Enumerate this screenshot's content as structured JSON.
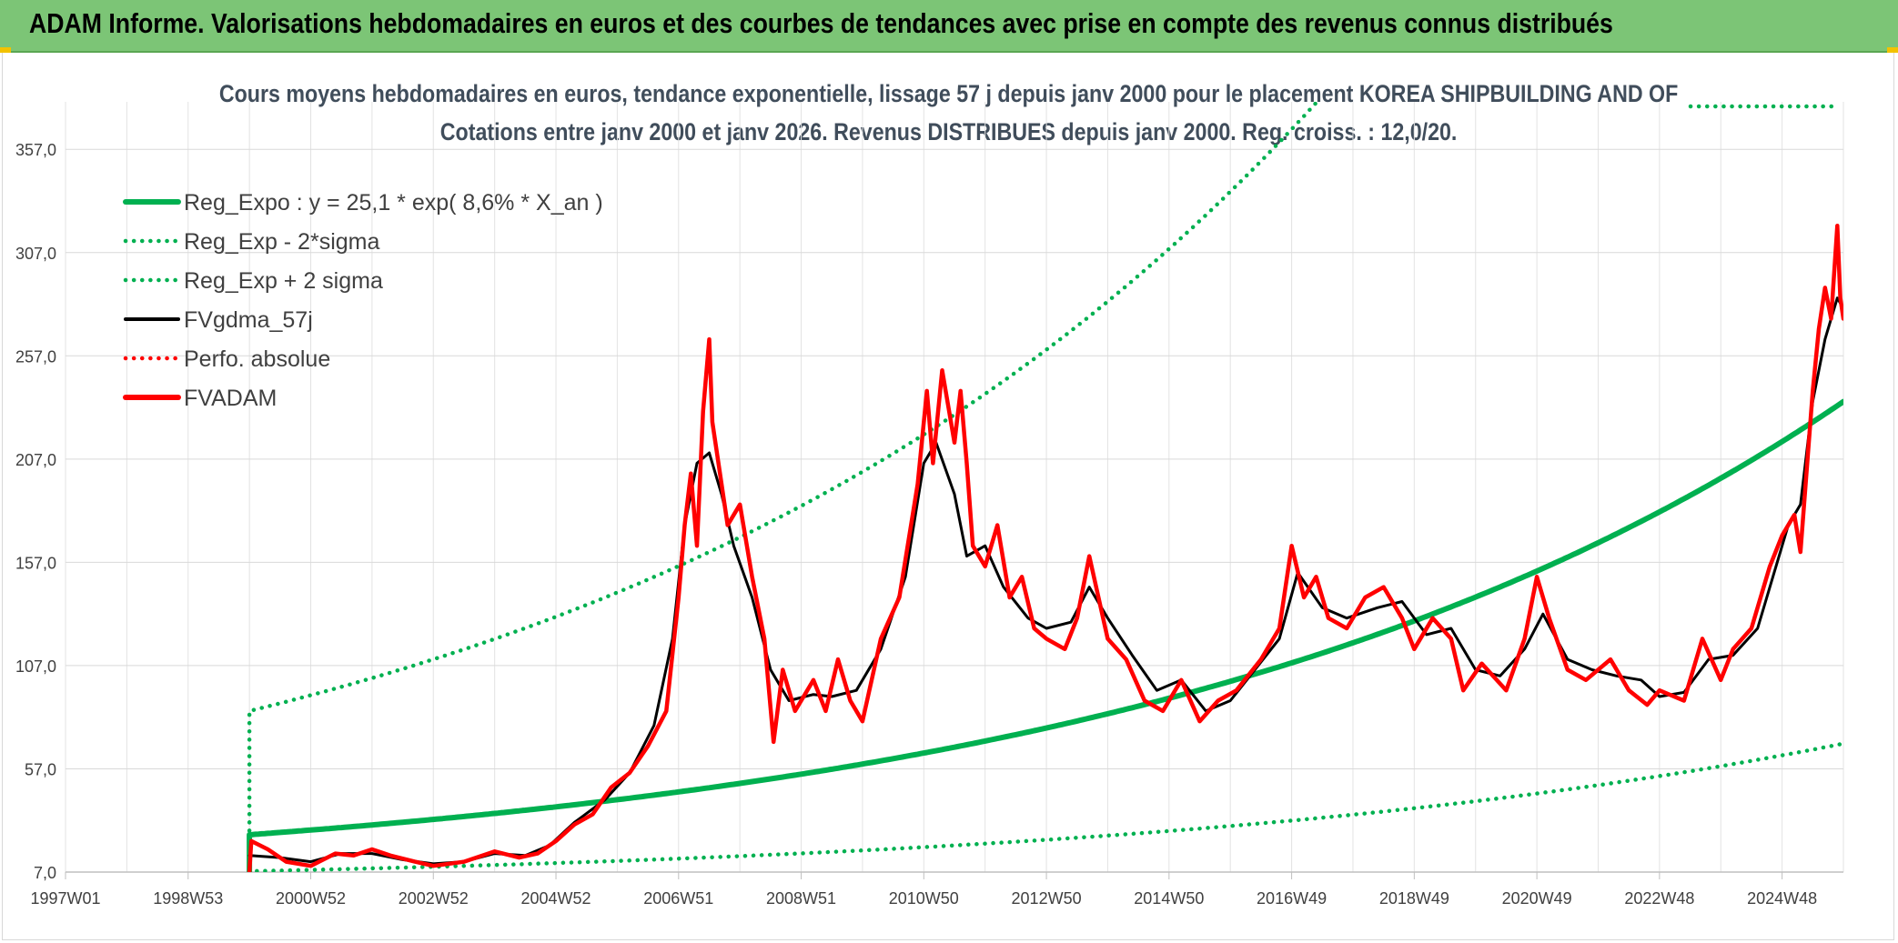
{
  "banner": {
    "title": "ADAM Informe. Valorisations hebdomadaires en euros et des courbes de tendances avec prise en compte des revenus connus distribués"
  },
  "chart_data": {
    "type": "line",
    "title": "Cours moyens hebdomadaires en euros, tendance exponentielle, lissage 57 j depuis janv 2000 pour le placement KOREA SHIPBUILDING AND OF",
    "subtitle": "Cotations entre janv 2000 et janv 2026. Revenus DISTRIBUES depuis janv 2000. Reg. croiss. : 12,0/20.",
    "xlabel": "",
    "ylabel": "",
    "y_ticks": [
      "7,0",
      "57,0",
      "107,0",
      "157,0",
      "207,0",
      "257,0",
      "307,0",
      "357,0"
    ],
    "ylim": [
      7,
      380
    ],
    "x_ticks": [
      {
        "label": "1997W01",
        "year": 1997.0
      },
      {
        "label": "1998W53",
        "year": 1999.0
      },
      {
        "label": "2000W52",
        "year": 2001.0
      },
      {
        "label": "2002W52",
        "year": 2003.0
      },
      {
        "label": "2004W52",
        "year": 2005.0
      },
      {
        "label": "2006W51",
        "year": 2007.0
      },
      {
        "label": "2008W51",
        "year": 2009.0
      },
      {
        "label": "2010W50",
        "year": 2011.0
      },
      {
        "label": "2012W50",
        "year": 2013.0
      },
      {
        "label": "2014W50",
        "year": 2015.0
      },
      {
        "label": "2016W49",
        "year": 2017.0
      },
      {
        "label": "2018W49",
        "year": 2019.0
      },
      {
        "label": "2020W49",
        "year": 2021.0
      },
      {
        "label": "2022W48",
        "year": 2023.0
      },
      {
        "label": "2024W48",
        "year": 2025.0
      }
    ],
    "xlim": [
      1997.0,
      2026.0
    ],
    "grid": true,
    "legend_position": "top-left",
    "series": [
      {
        "name": "Reg_Expo : y = 25,1 * exp( 8,6% *  X_an )",
        "color": "#00b050",
        "style": "solid",
        "x": [
          2000.0,
          2026.0
        ],
        "kind": "exp",
        "a": 25.1,
        "rate": 0.086
      },
      {
        "name": "Reg_Exp - 2*sigma",
        "color": "#00b050",
        "style": "dotted",
        "x": [
          2000.0,
          2026.0
        ],
        "kind": "exp",
        "a": 7.4,
        "rate": 0.086
      },
      {
        "name": "Reg_Exp + 2 sigma",
        "color": "#00b050",
        "style": "dotted",
        "x": [
          2000.0,
          2026.0
        ],
        "kind": "exp",
        "a": 85.0,
        "rate": 0.086
      },
      {
        "name": "FVgdma_57j",
        "color": "#000000",
        "style": "solid",
        "points": [
          [
            2000.0,
            15
          ],
          [
            2000.5,
            14
          ],
          [
            2001.0,
            12
          ],
          [
            2001.5,
            16
          ],
          [
            2002.0,
            16
          ],
          [
            2002.5,
            13
          ],
          [
            2003.0,
            11
          ],
          [
            2003.5,
            12
          ],
          [
            2004.0,
            16
          ],
          [
            2004.5,
            15
          ],
          [
            2004.9,
            20
          ],
          [
            2005.3,
            31
          ],
          [
            2005.8,
            42
          ],
          [
            2006.2,
            55
          ],
          [
            2006.6,
            78
          ],
          [
            2006.9,
            120
          ],
          [
            2007.1,
            175
          ],
          [
            2007.3,
            205
          ],
          [
            2007.5,
            210
          ],
          [
            2007.7,
            190
          ],
          [
            2007.9,
            165
          ],
          [
            2008.2,
            140
          ],
          [
            2008.5,
            105
          ],
          [
            2008.8,
            90
          ],
          [
            2009.2,
            93
          ],
          [
            2009.5,
            92
          ],
          [
            2009.9,
            95
          ],
          [
            2010.3,
            115
          ],
          [
            2010.7,
            150
          ],
          [
            2011.0,
            205
          ],
          [
            2011.2,
            215
          ],
          [
            2011.5,
            190
          ],
          [
            2011.7,
            160
          ],
          [
            2012.0,
            165
          ],
          [
            2012.3,
            145
          ],
          [
            2012.7,
            130
          ],
          [
            2013.0,
            125
          ],
          [
            2013.4,
            128
          ],
          [
            2013.7,
            145
          ],
          [
            2014.0,
            130
          ],
          [
            2014.4,
            112
          ],
          [
            2014.8,
            95
          ],
          [
            2015.2,
            100
          ],
          [
            2015.6,
            85
          ],
          [
            2016.0,
            90
          ],
          [
            2016.4,
            105
          ],
          [
            2016.8,
            120
          ],
          [
            2017.1,
            152
          ],
          [
            2017.5,
            135
          ],
          [
            2017.9,
            130
          ],
          [
            2018.4,
            135
          ],
          [
            2018.8,
            138
          ],
          [
            2019.2,
            122
          ],
          [
            2019.6,
            125
          ],
          [
            2020.0,
            105
          ],
          [
            2020.4,
            102
          ],
          [
            2020.8,
            115
          ],
          [
            2021.1,
            132
          ],
          [
            2021.5,
            110
          ],
          [
            2021.9,
            105
          ],
          [
            2022.3,
            102
          ],
          [
            2022.7,
            100
          ],
          [
            2023.0,
            92
          ],
          [
            2023.4,
            94
          ],
          [
            2023.8,
            110
          ],
          [
            2024.2,
            112
          ],
          [
            2024.6,
            125
          ],
          [
            2024.9,
            155
          ],
          [
            2025.1,
            175
          ],
          [
            2025.3,
            185
          ],
          [
            2025.5,
            235
          ],
          [
            2025.7,
            265
          ],
          [
            2025.9,
            285
          ],
          [
            2026.0,
            280
          ]
        ]
      },
      {
        "name": "Perfo. absolue",
        "color": "#ff0000",
        "style": "dotted",
        "points": []
      },
      {
        "name": "FVADAM",
        "color": "#ff0000",
        "style": "solid",
        "points": [
          [
            2000.0,
            7
          ],
          [
            2000.03,
            22
          ],
          [
            2000.3,
            18
          ],
          [
            2000.6,
            12
          ],
          [
            2001.0,
            10
          ],
          [
            2001.4,
            16
          ],
          [
            2001.7,
            15
          ],
          [
            2002.0,
            18
          ],
          [
            2002.3,
            15
          ],
          [
            2002.7,
            12
          ],
          [
            2003.0,
            10
          ],
          [
            2003.5,
            12
          ],
          [
            2004.0,
            17
          ],
          [
            2004.4,
            14
          ],
          [
            2004.7,
            16
          ],
          [
            2005.0,
            22
          ],
          [
            2005.3,
            30
          ],
          [
            2005.6,
            35
          ],
          [
            2005.9,
            48
          ],
          [
            2006.2,
            55
          ],
          [
            2006.5,
            68
          ],
          [
            2006.8,
            85
          ],
          [
            2007.0,
            140
          ],
          [
            2007.1,
            175
          ],
          [
            2007.2,
            200
          ],
          [
            2007.3,
            165
          ],
          [
            2007.4,
            230
          ],
          [
            2007.5,
            265
          ],
          [
            2007.55,
            225
          ],
          [
            2007.7,
            195
          ],
          [
            2007.8,
            175
          ],
          [
            2008.0,
            185
          ],
          [
            2008.2,
            150
          ],
          [
            2008.4,
            120
          ],
          [
            2008.55,
            70
          ],
          [
            2008.7,
            105
          ],
          [
            2008.9,
            85
          ],
          [
            2009.2,
            100
          ],
          [
            2009.4,
            85
          ],
          [
            2009.6,
            110
          ],
          [
            2009.8,
            90
          ],
          [
            2010.0,
            80
          ],
          [
            2010.3,
            120
          ],
          [
            2010.6,
            140
          ],
          [
            2010.9,
            195
          ],
          [
            2011.05,
            240
          ],
          [
            2011.15,
            205
          ],
          [
            2011.3,
            250
          ],
          [
            2011.5,
            215
          ],
          [
            2011.6,
            240
          ],
          [
            2011.7,
            205
          ],
          [
            2011.8,
            165
          ],
          [
            2012.0,
            155
          ],
          [
            2012.2,
            175
          ],
          [
            2012.4,
            140
          ],
          [
            2012.6,
            150
          ],
          [
            2012.8,
            125
          ],
          [
            2013.0,
            120
          ],
          [
            2013.3,
            115
          ],
          [
            2013.5,
            130
          ],
          [
            2013.7,
            160
          ],
          [
            2014.0,
            120
          ],
          [
            2014.3,
            110
          ],
          [
            2014.6,
            90
          ],
          [
            2014.9,
            85
          ],
          [
            2015.2,
            100
          ],
          [
            2015.5,
            80
          ],
          [
            2015.8,
            90
          ],
          [
            2016.1,
            95
          ],
          [
            2016.5,
            110
          ],
          [
            2016.8,
            125
          ],
          [
            2017.0,
            165
          ],
          [
            2017.2,
            140
          ],
          [
            2017.4,
            150
          ],
          [
            2017.6,
            130
          ],
          [
            2017.9,
            125
          ],
          [
            2018.2,
            140
          ],
          [
            2018.5,
            145
          ],
          [
            2018.8,
            130
          ],
          [
            2019.0,
            115
          ],
          [
            2019.3,
            130
          ],
          [
            2019.6,
            120
          ],
          [
            2019.8,
            95
          ],
          [
            2020.1,
            108
          ],
          [
            2020.5,
            95
          ],
          [
            2020.8,
            120
          ],
          [
            2021.0,
            150
          ],
          [
            2021.2,
            130
          ],
          [
            2021.5,
            105
          ],
          [
            2021.8,
            100
          ],
          [
            2022.2,
            110
          ],
          [
            2022.5,
            95
          ],
          [
            2022.8,
            88
          ],
          [
            2023.0,
            95
          ],
          [
            2023.4,
            90
          ],
          [
            2023.7,
            120
          ],
          [
            2024.0,
            100
          ],
          [
            2024.2,
            115
          ],
          [
            2024.5,
            125
          ],
          [
            2024.8,
            155
          ],
          [
            2025.0,
            170
          ],
          [
            2025.2,
            180
          ],
          [
            2025.3,
            162
          ],
          [
            2025.5,
            240
          ],
          [
            2025.6,
            270
          ],
          [
            2025.7,
            290
          ],
          [
            2025.8,
            275
          ],
          [
            2025.9,
            320
          ],
          [
            2025.95,
            285
          ],
          [
            2026.0,
            275
          ]
        ]
      }
    ]
  }
}
